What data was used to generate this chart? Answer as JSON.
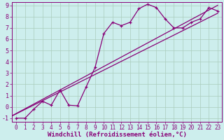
{
  "xlabel": "Windchill (Refroidissement éolien,°C)",
  "bg_color": "#cdeeed",
  "line_color": "#880077",
  "xmin": 0,
  "xmax": 23,
  "ymin": -1,
  "ymax": 9,
  "straight_line1": [
    [
      -1,
      -1
    ],
    [
      23,
      8.3
    ]
  ],
  "straight_line2": [
    [
      -1,
      -1
    ],
    [
      23,
      9.0
    ]
  ],
  "jagged_x": [
    0,
    1,
    2,
    3,
    4,
    5,
    6,
    7,
    8,
    9,
    10,
    11,
    12,
    13,
    14,
    15,
    16,
    17,
    18,
    19,
    20,
    21,
    22,
    23
  ],
  "jagged_y": [
    -1,
    -1,
    -0.2,
    0.5,
    0.15,
    1.5,
    0.15,
    0.1,
    1.8,
    3.5,
    6.5,
    7.5,
    7.2,
    7.5,
    8.7,
    9.1,
    8.8,
    7.8,
    7.0,
    7.0,
    7.5,
    7.8,
    8.8,
    8.5
  ],
  "grid_color": "#aaccbb",
  "tick_fontsize": 5.5,
  "xlabel_fontsize": 6.5
}
